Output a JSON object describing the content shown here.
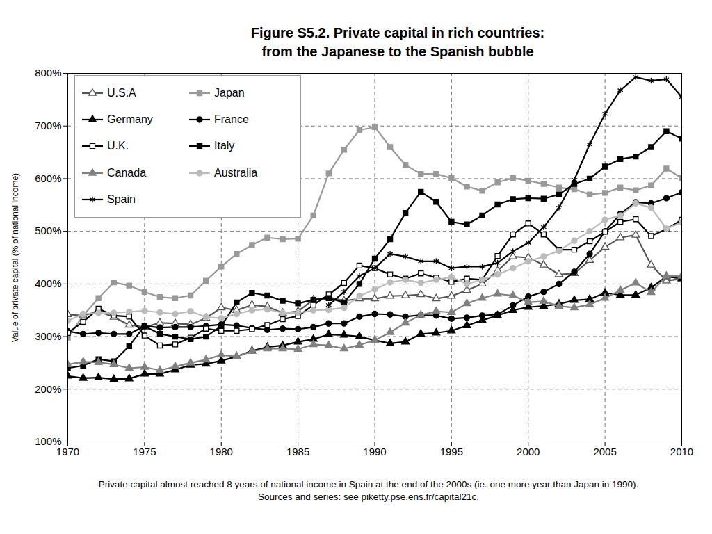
{
  "chart_data": {
    "type": "line",
    "title": "Figure S5.2. Private capital in rich countries:",
    "subtitle": "from the Japanese to the Spanish bubble",
    "caption": "Private capital almost reached 8 years of national income in Spain at the end of the 2000s (ie. one more year than Japan in 1990). Sources and series: see piketty.pse.ens.fr/capital21c.",
    "y_label": "Value of private capital (% of national income)",
    "x": [
      1970,
      1971,
      1972,
      1973,
      1974,
      1975,
      1976,
      1977,
      1978,
      1979,
      1980,
      1981,
      1982,
      1983,
      1984,
      1985,
      1986,
      1987,
      1988,
      1989,
      1990,
      1991,
      1992,
      1993,
      1994,
      1995,
      1996,
      1997,
      1998,
      1999,
      2000,
      2001,
      2002,
      2003,
      2004,
      2005,
      2006,
      2007,
      2008,
      2009,
      2010
    ],
    "xlim": [
      1970,
      2010
    ],
    "xticks": [
      1970,
      1975,
      1980,
      1985,
      1990,
      1995,
      2000,
      2005,
      2010
    ],
    "ylim": [
      100,
      800
    ],
    "yticks": [
      {
        "value": 100,
        "label": "100%"
      },
      {
        "value": 200,
        "label": "200%"
      },
      {
        "value": 300,
        "label": "300%"
      },
      {
        "value": 400,
        "label": "400%"
      },
      {
        "value": 500,
        "label": "500%"
      },
      {
        "value": 600,
        "label": "600%"
      },
      {
        "value": 700,
        "label": "700%"
      },
      {
        "value": 800,
        "label": "800%"
      }
    ],
    "grid": true,
    "legend": "top-left",
    "series": [
      {
        "name": "U.S.A",
        "color": "#555555",
        "marker": "triangle-open",
        "values": [
          342,
          340,
          348,
          337,
          322,
          318,
          326,
          325,
          323,
          335,
          355,
          350,
          360,
          357,
          345,
          348,
          370,
          375,
          368,
          372,
          372,
          377,
          378,
          380,
          372,
          377,
          388,
          400,
          425,
          452,
          450,
          436,
          418,
          420,
          445,
          470,
          488,
          493,
          436,
          406,
          410
        ]
      },
      {
        "name": "Japan",
        "color": "#999999",
        "marker": "square",
        "values": [
          298,
          340,
          373,
          403,
          397,
          385,
          375,
          373,
          378,
          406,
          433,
          457,
          474,
          488,
          485,
          486,
          530,
          610,
          655,
          692,
          698,
          660,
          626,
          609,
          609,
          601,
          585,
          577,
          593,
          601,
          596,
          590,
          583,
          580,
          570,
          573,
          583,
          578,
          587,
          619,
          601
        ]
      },
      {
        "name": "Germany",
        "color": "#000000",
        "marker": "triangle",
        "values": [
          225,
          221,
          222,
          219,
          220,
          229,
          229,
          237,
          246,
          248,
          254,
          262,
          273,
          280,
          283,
          290,
          295,
          304,
          303,
          300,
          293,
          287,
          290,
          305,
          307,
          311,
          321,
          331,
          340,
          350,
          356,
          358,
          362,
          369,
          371,
          383,
          379,
          379,
          393,
          414,
          410
        ]
      },
      {
        "name": "France",
        "color": "#000000",
        "marker": "circle",
        "values": [
          310,
          305,
          307,
          305,
          305,
          320,
          317,
          318,
          318,
          320,
          323,
          321,
          316,
          313,
          315,
          314,
          318,
          325,
          325,
          338,
          343,
          342,
          338,
          341,
          340,
          334,
          336,
          340,
          342,
          359,
          376,
          385,
          400,
          423,
          457,
          500,
          533,
          555,
          553,
          563,
          574
        ]
      },
      {
        "name": "U.K.",
        "color": "#000000",
        "marker": "square-open",
        "values": [
          307,
          328,
          353,
          340,
          338,
          302,
          283,
          285,
          298,
          315,
          311,
          311,
          314,
          322,
          333,
          339,
          360,
          380,
          402,
          435,
          430,
          418,
          410,
          420,
          412,
          404,
          410,
          408,
          453,
          494,
          515,
          494,
          465,
          465,
          481,
          499,
          518,
          523,
          491,
          504,
          522
        ]
      },
      {
        "name": "Italy",
        "color": "#000000",
        "marker": "square",
        "values": [
          240,
          245,
          257,
          253,
          282,
          320,
          305,
          300,
          295,
          300,
          320,
          365,
          383,
          378,
          368,
          363,
          370,
          373,
          365,
          400,
          448,
          485,
          535,
          575,
          556,
          518,
          513,
          530,
          551,
          561,
          563,
          562,
          570,
          590,
          600,
          623,
          637,
          642,
          660,
          690,
          676
        ]
      },
      {
        "name": "Canada",
        "color": "#808080",
        "marker": "triangle",
        "values": [
          247,
          252,
          251,
          247,
          240,
          242,
          236,
          243,
          250,
          256,
          265,
          262,
          272,
          277,
          277,
          276,
          285,
          283,
          277,
          284,
          293,
          308,
          326,
          341,
          348,
          346,
          363,
          373,
          381,
          378,
          365,
          367,
          358,
          355,
          361,
          373,
          388,
          402,
          384,
          415,
          415
        ]
      },
      {
        "name": "Australia",
        "color": "#bbbbbb",
        "marker": "circle",
        "values": [
          330,
          343,
          345,
          345,
          347,
          349,
          346,
          343,
          348,
          337,
          335,
          343,
          350,
          352,
          345,
          345,
          350,
          351,
          355,
          377,
          390,
          403,
          408,
          402,
          408,
          413,
          400,
          408,
          418,
          430,
          443,
          452,
          463,
          482,
          500,
          522,
          530,
          553,
          545,
          505,
          517
        ]
      },
      {
        "name": "Spain",
        "color": "#000000",
        "marker": "asterisk",
        "values": [
          null,
          null,
          null,
          null,
          null,
          null,
          null,
          null,
          null,
          null,
          null,
          null,
          null,
          null,
          null,
          null,
          null,
          360,
          385,
          415,
          430,
          457,
          452,
          443,
          443,
          430,
          433,
          433,
          440,
          462,
          478,
          508,
          545,
          598,
          665,
          723,
          768,
          793,
          786,
          789,
          755
        ]
      }
    ]
  }
}
